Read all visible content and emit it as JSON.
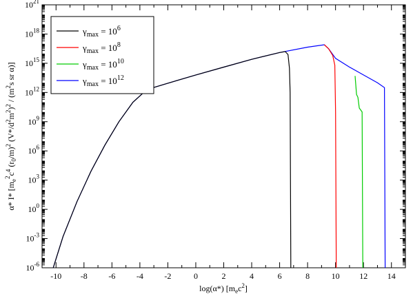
{
  "chart_data": {
    "type": "line",
    "title": "",
    "xlabel": "log(α*) [m_ec²]",
    "ylabel": "α* I* [m_e²c⁴ (r_0/m)² (V*/d²m²)² / (m²s sr α)]",
    "xlim": [
      -11,
      15
    ],
    "ylim_log10": [
      -6,
      21
    ],
    "y_scale": "log",
    "grid": false,
    "legend_position": "top-left",
    "x_ticks": [
      -10,
      -8,
      -6,
      -4,
      -2,
      0,
      2,
      4,
      6,
      8,
      10,
      12,
      14
    ],
    "x_tick_labels": [
      "-10",
      "-8",
      "-6",
      "-4",
      "-2",
      "0",
      "2",
      "4",
      "6",
      "8",
      "10",
      "12",
      "14"
    ],
    "y_tick_exponents": [
      -6,
      -3,
      0,
      3,
      6,
      9,
      12,
      15,
      18,
      21
    ],
    "y_tick_labels": [
      "10^-6",
      "10^-3",
      "10^0",
      "10^3",
      "10^6",
      "10^9",
      "10^12",
      "10^15",
      "10^18",
      "10^21"
    ],
    "series": [
      {
        "name": "γmax = 10^6",
        "legend": {
          "base": "γ",
          "sub": "max",
          "eq": " = 10",
          "sup": "6"
        },
        "color": "#000000",
        "points_log10": [
          [
            -10.2,
            -6.0
          ],
          [
            -9.5,
            -2.8
          ],
          [
            -8.5,
            0.8
          ],
          [
            -7.5,
            3.9
          ],
          [
            -6.5,
            6.6
          ],
          [
            -5.5,
            9.0
          ],
          [
            -4.5,
            11.0
          ],
          [
            -3.5,
            12.3
          ],
          [
            -2,
            12.95
          ],
          [
            0,
            13.8
          ],
          [
            2,
            14.6
          ],
          [
            4,
            15.4
          ],
          [
            6,
            16.1
          ],
          [
            6.4,
            16.2
          ],
          [
            6.6,
            15.9
          ],
          [
            6.7,
            14.5
          ],
          [
            6.75,
            12.0
          ],
          [
            6.8,
            -6.0
          ]
        ]
      },
      {
        "name": "γmax = 10^8",
        "legend": {
          "base": "γ",
          "sub": "max",
          "eq": " = 10",
          "sup": "8"
        },
        "color": "#ff0000",
        "points_log10": [
          [
            9.2,
            16.9
          ],
          [
            9.5,
            16.5
          ],
          [
            9.8,
            15.8
          ],
          [
            9.95,
            14.8
          ],
          [
            10.0,
            10.0
          ],
          [
            10.05,
            -6.0
          ]
        ]
      },
      {
        "name": "γmax = 10^10",
        "legend": {
          "base": "γ",
          "sub": "max",
          "eq": " = 10",
          "sup": "10"
        },
        "color": "#00cc00",
        "points_log10": [
          [
            11.4,
            13.7
          ],
          [
            11.5,
            11.8
          ],
          [
            11.6,
            11.5
          ],
          [
            11.7,
            10.4
          ],
          [
            11.9,
            10.0
          ],
          [
            11.95,
            -6.0
          ]
        ]
      },
      {
        "name": "γmax = 10^12",
        "legend": {
          "base": "γ",
          "sub": "max",
          "eq": " = 10",
          "sup": "12"
        },
        "color": "#0000ff",
        "points_log10": [
          [
            -10.2,
            -6.0
          ],
          [
            -9.5,
            -2.8
          ],
          [
            -8.5,
            0.8
          ],
          [
            -7.5,
            3.9
          ],
          [
            -6.5,
            6.6
          ],
          [
            -5.5,
            9.0
          ],
          [
            -4.5,
            11.0
          ],
          [
            -3.5,
            12.3
          ],
          [
            -2,
            12.95
          ],
          [
            0,
            13.8
          ],
          [
            2,
            14.6
          ],
          [
            4,
            15.4
          ],
          [
            6,
            16.1
          ],
          [
            8,
            16.65
          ],
          [
            9.2,
            16.9
          ],
          [
            9.5,
            16.5
          ],
          [
            10,
            15.5
          ],
          [
            11,
            14.6
          ],
          [
            12,
            13.8
          ],
          [
            13,
            13.0
          ],
          [
            13.5,
            12.5
          ],
          [
            13.55,
            -6.0
          ]
        ]
      }
    ]
  }
}
